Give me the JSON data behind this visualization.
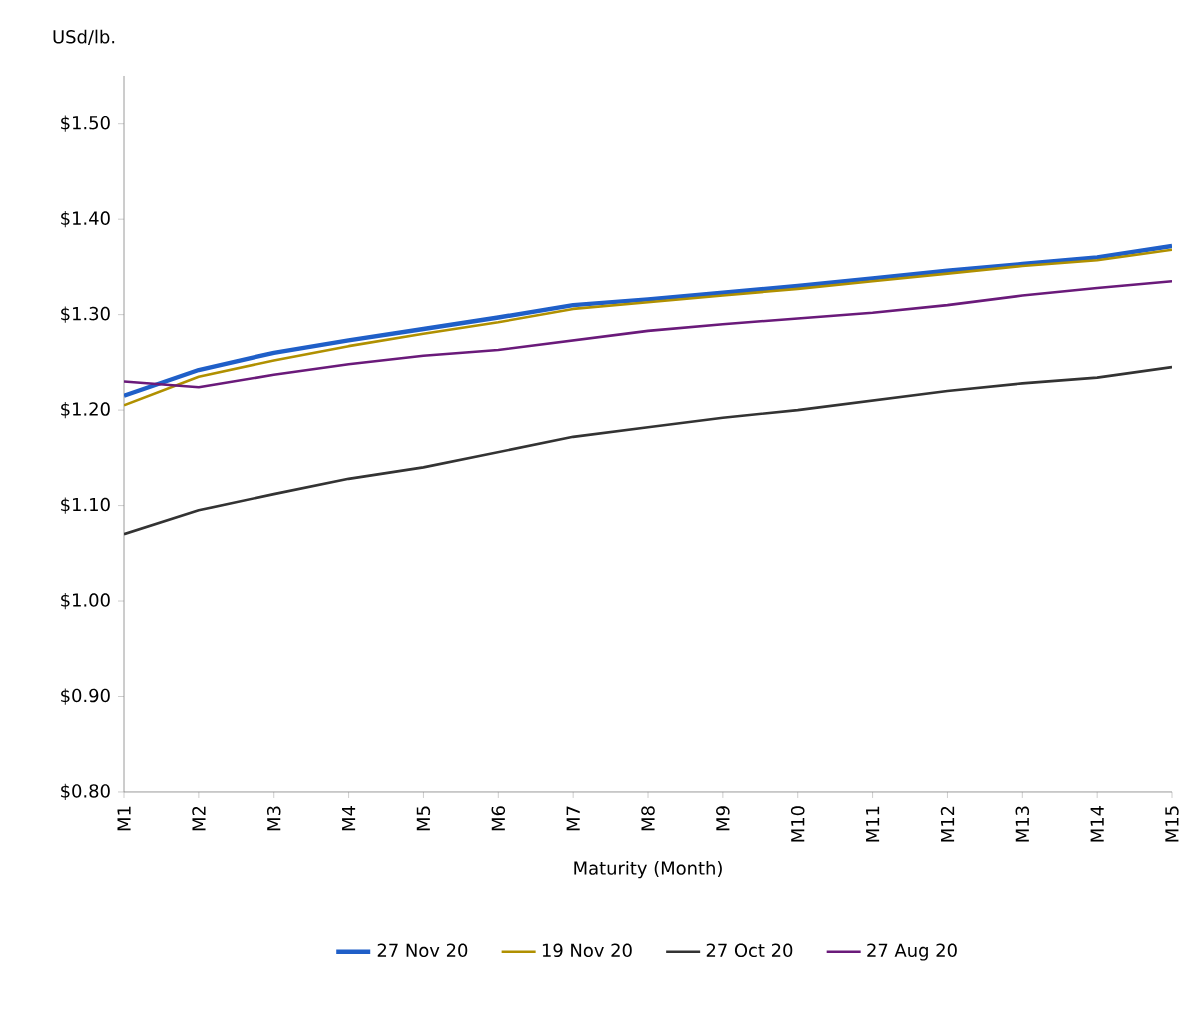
{
  "chart_data": {
    "type": "line",
    "ylabel": "USd/lb.",
    "xlabel": "Maturity (Month)",
    "categories": [
      "M1",
      "M2",
      "M3",
      "M4",
      "M5",
      "M6",
      "M7",
      "M8",
      "M9",
      "M10",
      "M11",
      "M12",
      "M13",
      "M14",
      "M15"
    ],
    "ylim": [
      0.8,
      1.55
    ],
    "yticks": [
      {
        "value": 0.8,
        "label": "$0.80"
      },
      {
        "value": 0.9,
        "label": "$0.90"
      },
      {
        "value": 1.0,
        "label": "$1.00"
      },
      {
        "value": 1.1,
        "label": "$1.10"
      },
      {
        "value": 1.2,
        "label": "$1.20"
      },
      {
        "value": 1.3,
        "label": "$1.30"
      },
      {
        "value": 1.4,
        "label": "$1.40"
      },
      {
        "value": 1.5,
        "label": "$1.50"
      }
    ],
    "series": [
      {
        "name": "27 Nov 20",
        "color": "#1f5fc8",
        "values": [
          1.215,
          1.242,
          1.26,
          1.273,
          1.285,
          1.297,
          1.31,
          1.316,
          1.323,
          1.33,
          1.338,
          1.346,
          1.353,
          1.36,
          1.372
        ]
      },
      {
        "name": "19 Nov 20",
        "color": "#b09000",
        "values": [
          1.205,
          1.235,
          1.252,
          1.267,
          1.28,
          1.292,
          1.306,
          1.313,
          1.32,
          1.327,
          1.335,
          1.343,
          1.351,
          1.357,
          1.368
        ]
      },
      {
        "name": "27 Oct 20",
        "color": "#333333",
        "values": [
          1.07,
          1.095,
          1.112,
          1.128,
          1.14,
          1.156,
          1.172,
          1.182,
          1.192,
          1.2,
          1.21,
          1.22,
          1.228,
          1.234,
          1.245
        ]
      },
      {
        "name": "27 Aug 20",
        "color": "#6a1a7a",
        "values": [
          1.23,
          1.224,
          1.237,
          1.248,
          1.257,
          1.263,
          1.273,
          1.283,
          1.29,
          1.296,
          1.302,
          1.31,
          1.32,
          1.328,
          1.335
        ]
      }
    ],
    "grid": false,
    "legend": "bottom",
    "marker": "none",
    "line_style": "solid"
  }
}
